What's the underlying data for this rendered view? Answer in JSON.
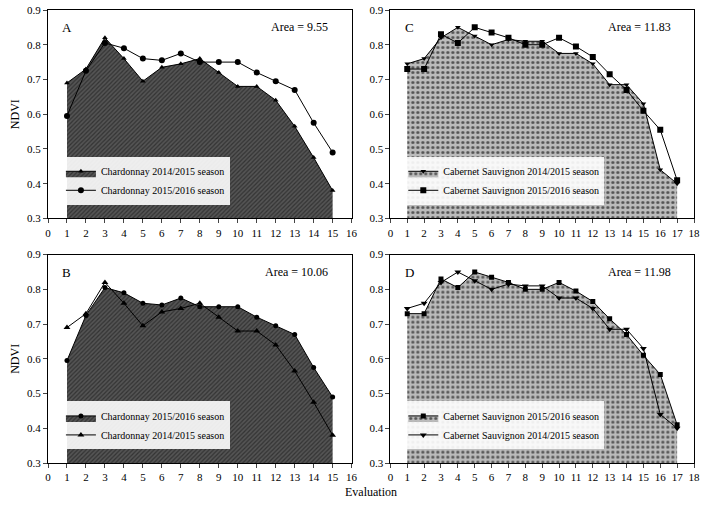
{
  "xlabel": "Evaluation",
  "chart_data": [
    {
      "type": "line",
      "title": "A",
      "annotations": [
        "Area = 9.55"
      ],
      "ylabel": "NDVI",
      "x": [
        1,
        2,
        3,
        4,
        5,
        6,
        7,
        8,
        9,
        10,
        11,
        12,
        13,
        14,
        15
      ],
      "xlim": [
        0,
        16
      ],
      "xticks": [
        0,
        1,
        2,
        3,
        4,
        5,
        6,
        7,
        8,
        9,
        10,
        11,
        12,
        13,
        14,
        15,
        16
      ],
      "ylim": [
        0.3,
        0.9
      ],
      "yticks": [
        0.3,
        0.4,
        0.5,
        0.6,
        0.7,
        0.8,
        0.9
      ],
      "legend": "lower left",
      "series": [
        {
          "name": "Chardonnay 2014/2015 season",
          "type": "area",
          "color": "#555555",
          "marker": "triangle-up",
          "line_style": "solid",
          "values": [
            0.69,
            0.73,
            0.82,
            0.76,
            0.695,
            0.735,
            0.745,
            0.76,
            0.72,
            0.68,
            0.68,
            0.64,
            0.565,
            0.475,
            0.38
          ]
        },
        {
          "name": "Chardonnay 2015/2016 season",
          "type": "line",
          "color": "#000000",
          "marker": "circle",
          "line_style": "solid",
          "values": [
            0.595,
            0.725,
            0.805,
            0.79,
            0.76,
            0.755,
            0.775,
            0.75,
            0.75,
            0.75,
            0.72,
            0.695,
            0.67,
            0.575,
            0.49
          ]
        }
      ]
    },
    {
      "type": "line",
      "title": "B",
      "annotations": [
        "Area = 10.06"
      ],
      "ylabel": "NDVI",
      "x": [
        1,
        2,
        3,
        4,
        5,
        6,
        7,
        8,
        9,
        10,
        11,
        12,
        13,
        14,
        15
      ],
      "xlim": [
        0,
        16
      ],
      "xticks": [
        0,
        1,
        2,
        3,
        4,
        5,
        6,
        7,
        8,
        9,
        10,
        11,
        12,
        13,
        14,
        15,
        16
      ],
      "ylim": [
        0.3,
        0.9
      ],
      "yticks": [
        0.3,
        0.4,
        0.5,
        0.6,
        0.7,
        0.8,
        0.9
      ],
      "legend": "lower left",
      "series": [
        {
          "name": "Chardonnay 2015/2016 season",
          "type": "area",
          "color": "#555555",
          "marker": "circle",
          "line_style": "solid",
          "values": [
            0.595,
            0.725,
            0.805,
            0.79,
            0.76,
            0.755,
            0.775,
            0.75,
            0.75,
            0.75,
            0.72,
            0.695,
            0.67,
            0.575,
            0.49
          ]
        },
        {
          "name": "Chardonnay 2014/2015 season",
          "type": "line",
          "color": "#000000",
          "marker": "triangle-up",
          "line_style": "solid",
          "values": [
            0.69,
            0.73,
            0.82,
            0.76,
            0.695,
            0.735,
            0.745,
            0.76,
            0.72,
            0.68,
            0.68,
            0.64,
            0.565,
            0.475,
            0.38
          ]
        }
      ]
    },
    {
      "type": "line",
      "title": "C",
      "annotations": [
        "Area = 11.83"
      ],
      "x": [
        1,
        2,
        3,
        4,
        5,
        6,
        7,
        8,
        9,
        10,
        11,
        12,
        13,
        14,
        15,
        16,
        17
      ],
      "xlim": [
        0,
        18
      ],
      "xticks": [
        0,
        1,
        2,
        3,
        4,
        5,
        6,
        7,
        8,
        9,
        10,
        11,
        12,
        13,
        14,
        15,
        16,
        17,
        18
      ],
      "ylim": [
        0.3,
        0.9
      ],
      "yticks": [
        0.3,
        0.4,
        0.5,
        0.6,
        0.7,
        0.8,
        0.9
      ],
      "legend": "lower left",
      "series": [
        {
          "name": "Cabernet Sauvignon 2014/2015 season",
          "type": "area",
          "color": "#bbbbbb",
          "marker": "triangle-down",
          "line_style": "solid",
          "values": [
            0.745,
            0.76,
            0.82,
            0.85,
            0.825,
            0.8,
            0.815,
            0.81,
            0.81,
            0.775,
            0.775,
            0.745,
            0.685,
            0.685,
            0.63,
            0.44,
            0.4
          ]
        },
        {
          "name": "Cabernet Sauvignon 2015/2016 season",
          "type": "line",
          "color": "#000000",
          "marker": "square",
          "line_style": "solid",
          "values": [
            0.73,
            0.73,
            0.83,
            0.805,
            0.85,
            0.835,
            0.82,
            0.8,
            0.8,
            0.82,
            0.795,
            0.765,
            0.715,
            0.67,
            0.61,
            0.555,
            0.41
          ]
        }
      ]
    },
    {
      "type": "line",
      "title": "D",
      "annotations": [
        "Area = 11.98"
      ],
      "x": [
        1,
        2,
        3,
        4,
        5,
        6,
        7,
        8,
        9,
        10,
        11,
        12,
        13,
        14,
        15,
        16,
        17
      ],
      "xlim": [
        0,
        18
      ],
      "xticks": [
        0,
        1,
        2,
        3,
        4,
        5,
        6,
        7,
        8,
        9,
        10,
        11,
        12,
        13,
        14,
        15,
        16,
        17,
        18
      ],
      "ylim": [
        0.3,
        0.9
      ],
      "yticks": [
        0.3,
        0.4,
        0.5,
        0.6,
        0.7,
        0.8,
        0.9
      ],
      "legend": "lower left",
      "series": [
        {
          "name": "Cabernet Sauvignon 2015/2016 season",
          "type": "area",
          "color": "#bbbbbb",
          "marker": "square",
          "line_style": "solid",
          "values": [
            0.73,
            0.73,
            0.83,
            0.805,
            0.85,
            0.835,
            0.82,
            0.8,
            0.8,
            0.82,
            0.795,
            0.765,
            0.715,
            0.67,
            0.61,
            0.555,
            0.41
          ]
        },
        {
          "name": "Cabernet Sauvignon 2014/2015 season",
          "type": "line",
          "color": "#000000",
          "marker": "triangle-down",
          "line_style": "solid",
          "values": [
            0.745,
            0.76,
            0.82,
            0.85,
            0.825,
            0.8,
            0.815,
            0.81,
            0.81,
            0.775,
            0.775,
            0.745,
            0.685,
            0.685,
            0.63,
            0.44,
            0.4
          ]
        }
      ]
    }
  ]
}
